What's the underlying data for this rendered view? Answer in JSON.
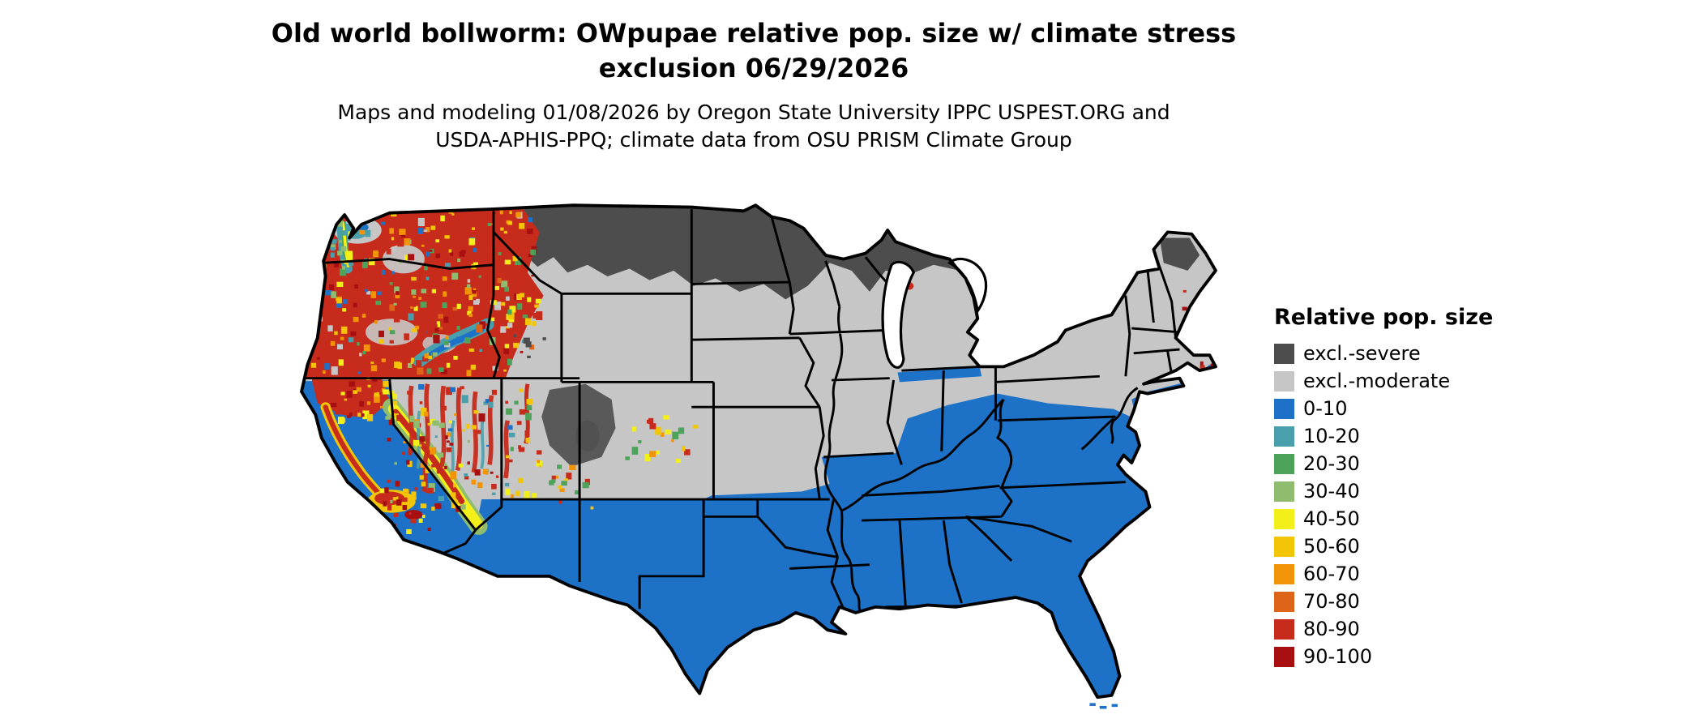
{
  "header": {
    "title_line1": "Old world bollworm: OWpupae relative pop. size w/ climate stress",
    "title_line2": "exclusion 06/29/2026",
    "subtitle_line1": "Maps and modeling 01/08/2026 by Oregon State University IPPC USPEST.ORG and",
    "subtitle_line2": "USDA-APHIS-PPQ; climate data from OSU PRISM Climate Group"
  },
  "map": {
    "description": "Contiguous United States raster map of relative population size with climate stress exclusion"
  },
  "legend": {
    "title": "Relative pop. size",
    "items": [
      {
        "label": "excl.-severe",
        "color": "#4d4d4d"
      },
      {
        "label": "excl.-moderate",
        "color": "#c6c6c6"
      },
      {
        "label": "0-10",
        "color": "#1d72c8"
      },
      {
        "label": "10-20",
        "color": "#4a9fad"
      },
      {
        "label": "20-30",
        "color": "#4ea35a"
      },
      {
        "label": "30-40",
        "color": "#8fbc6e"
      },
      {
        "label": "40-50",
        "color": "#f2ef1a"
      },
      {
        "label": "50-60",
        "color": "#f2c607"
      },
      {
        "label": "60-70",
        "color": "#f29407"
      },
      {
        "label": "70-80",
        "color": "#dd6418"
      },
      {
        "label": "80-90",
        "color": "#c62b1c"
      },
      {
        "label": "90-100",
        "color": "#a80f11"
      }
    ]
  }
}
